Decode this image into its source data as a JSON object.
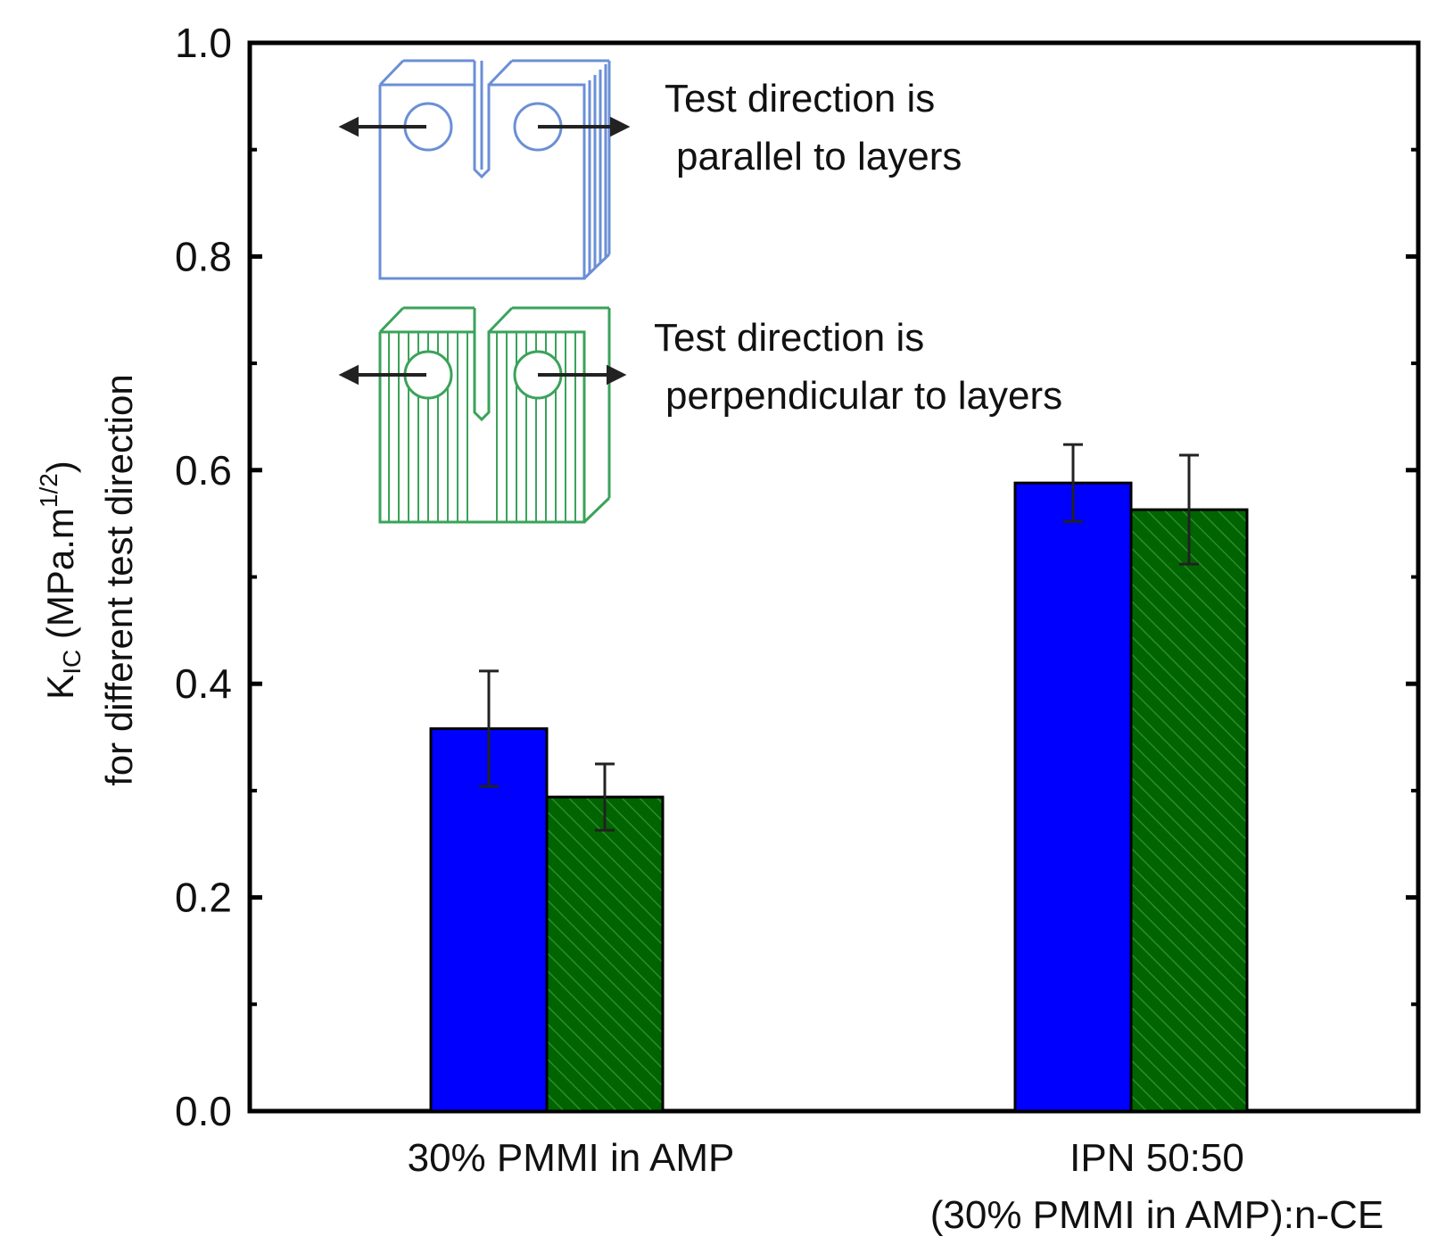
{
  "chart_data": {
    "type": "bar",
    "categories": [
      [
        "30% PMMI in AMP"
      ],
      [
        "IPN 50:50",
        "(30% PMMI in AMP):n-CE"
      ]
    ],
    "series": [
      {
        "name": "Test direction is parallel to layers",
        "color": "#0000ff",
        "pattern": "solid",
        "values": [
          0.358,
          0.588
        ],
        "errors": [
          0.054,
          0.036
        ]
      },
      {
        "name": "Test direction is perpendicular to layers",
        "color": "#006400",
        "pattern": "hatched",
        "values": [
          0.294,
          0.563
        ],
        "errors": [
          0.031,
          0.051
        ]
      }
    ],
    "ylim": [
      0.0,
      1.0
    ],
    "yticks": [
      "0.0",
      "0.2",
      "0.4",
      "0.6",
      "0.8",
      "1.0"
    ],
    "ylabel": {
      "main": "K",
      "sub": "IC",
      "units_open": " (MPa.m",
      "units_sup": "1/2",
      "units_close": ")",
      "line2": "for different test direction"
    },
    "legend": {
      "placement": "top-left inset",
      "entries": [
        {
          "line1": "Test direction is",
          "line2": "parallel to layers",
          "icon": "blue-layered-specimen-icon"
        },
        {
          "line1": "Test direction is",
          "line2": "perpendicular to layers",
          "icon": "green-layered-specimen-icon"
        }
      ]
    },
    "grid": false
  }
}
